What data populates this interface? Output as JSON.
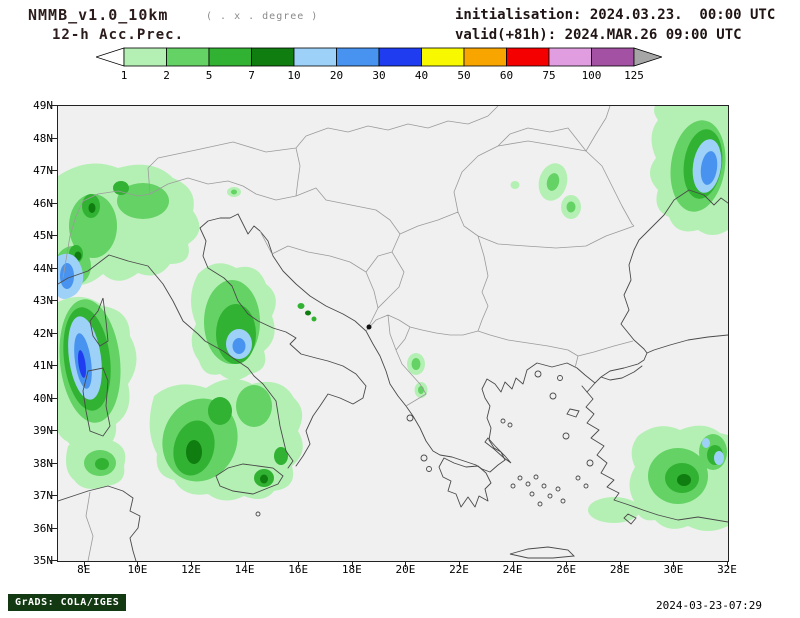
{
  "header": {
    "model_title": "NMMB_v1.0_10km",
    "resolution_note": "( . x . degree )",
    "product_title": "12-h Acc.Prec.",
    "init_label": "initialisation: 2024.03.23.  00:00 UTC",
    "valid_label": "valid(+81h): 2024.MAR.26 09:00 UTC"
  },
  "colorbar": {
    "tick_labels": [
      "1",
      "2",
      "5",
      "7",
      "10",
      "20",
      "30",
      "40",
      "50",
      "60",
      "75",
      "100",
      "125"
    ],
    "segment_colors": [
      "#b4f0b4",
      "#64d264",
      "#32b232",
      "#0f7d0f",
      "#9dd1f8",
      "#4793ef",
      "#1f3cf0",
      "#f8f800",
      "#f8a500",
      "#f50000",
      "#e09de0",
      "#a352a3"
    ],
    "left_arrow_color": "#ffffff",
    "right_arrow_color": "#a6a6a6"
  },
  "palette": {
    "g1": "#b4f0b4",
    "g2": "#64d264",
    "g3": "#32b232",
    "g4": "#0f7d0f",
    "b1": "#9dd1f8",
    "b2": "#4793ef",
    "b3": "#1f3cf0"
  },
  "map": {
    "y_axis_labels": [
      "49N",
      "48N",
      "47N",
      "46N",
      "45N",
      "44N",
      "43N",
      "42N",
      "41N",
      "40N",
      "39N",
      "38N",
      "37N",
      "36N",
      "35N"
    ],
    "x_axis_labels": [
      "8E",
      "10E",
      "12E",
      "14E",
      "16E",
      "18E",
      "20E",
      "22E",
      "24E",
      "26E",
      "28E",
      "30E",
      "32E"
    ]
  },
  "footer": {
    "left": "GrADS: COLA/IGES",
    "right": "2024-03-23-07:29",
    "stamp_bg": "#123912",
    "stamp_fg": "#ffffff"
  }
}
